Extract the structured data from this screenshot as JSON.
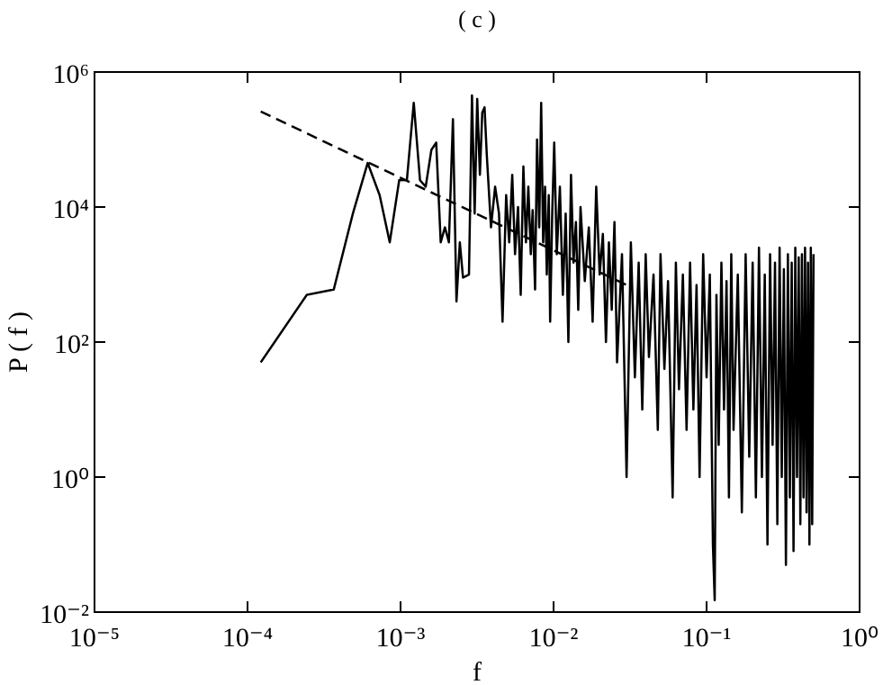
{
  "chart_data": {
    "type": "line",
    "title": "( c )",
    "x_label": "f",
    "y_label": "P ( f )",
    "log_x": true,
    "log_y": true,
    "xlim": [
      1e-05,
      1
    ],
    "ylim": [
      0.01,
      1000000
    ],
    "xticks": [
      {
        "value": 1e-05,
        "label": "10⁻⁵"
      },
      {
        "value": 0.0001,
        "label": "10⁻⁴"
      },
      {
        "value": 0.001,
        "label": "10⁻³"
      },
      {
        "value": 0.01,
        "label": "10⁻²"
      },
      {
        "value": 0.1,
        "label": "10⁻¹"
      },
      {
        "value": 1,
        "label": "10⁰"
      }
    ],
    "yticks": [
      {
        "value": 0.01,
        "label": "10⁻²"
      },
      {
        "value": 1,
        "label": "10⁰"
      },
      {
        "value": 100,
        "label": "10²"
      },
      {
        "value": 10000,
        "label": "10⁴"
      },
      {
        "value": 1000000,
        "label": "10⁶"
      }
    ],
    "series": [
      {
        "color": "#000000",
        "dashed": false,
        "x": [
          0.000122,
          0.000244,
          0.000366,
          0.000488,
          0.00061,
          0.00073,
          0.00085,
          0.00098,
          0.0011,
          0.00122,
          0.00134,
          0.00146,
          0.00159,
          0.00171,
          0.00183,
          0.00195,
          0.00207,
          0.0022,
          0.00232,
          0.00244,
          0.00256,
          0.0028,
          0.00293,
          0.00305,
          0.00317,
          0.0033,
          0.00342,
          0.00354,
          0.00366,
          0.0039,
          0.00415,
          0.0044,
          0.00464,
          0.0049,
          0.00513,
          0.00537,
          0.0056,
          0.00586,
          0.0061,
          0.00635,
          0.0066,
          0.00684,
          0.0071,
          0.0073,
          0.00757,
          0.0078,
          0.00806,
          0.0083,
          0.00855,
          0.0088,
          0.00903,
          0.0093,
          0.0095,
          0.0098,
          0.0101,
          0.0105,
          0.011,
          0.0115,
          0.012,
          0.0125,
          0.013,
          0.0135,
          0.014,
          0.0145,
          0.015,
          0.016,
          0.017,
          0.018,
          0.019,
          0.02,
          0.021,
          0.022,
          0.023,
          0.024,
          0.025,
          0.026,
          0.028,
          0.03,
          0.032,
          0.034,
          0.036,
          0.038,
          0.04,
          0.042,
          0.045,
          0.048,
          0.05,
          0.053,
          0.056,
          0.06,
          0.063,
          0.066,
          0.07,
          0.074,
          0.078,
          0.082,
          0.086,
          0.09,
          0.095,
          0.1,
          0.105,
          0.11,
          0.113,
          0.116,
          0.12,
          0.125,
          0.13,
          0.135,
          0.14,
          0.145,
          0.15,
          0.16,
          0.17,
          0.18,
          0.19,
          0.2,
          0.21,
          0.22,
          0.23,
          0.24,
          0.25,
          0.26,
          0.27,
          0.28,
          0.29,
          0.3,
          0.31,
          0.32,
          0.33,
          0.34,
          0.35,
          0.36,
          0.37,
          0.38,
          0.39,
          0.4,
          0.41,
          0.42,
          0.43,
          0.44,
          0.45,
          0.46,
          0.47,
          0.48,
          0.49,
          0.5
        ],
        "values": [
          50,
          500,
          600,
          8000,
          45000,
          15000,
          3000,
          25000,
          25000,
          350000,
          25000,
          20000,
          70000,
          90000,
          3000,
          5000,
          3000,
          200000,
          400,
          3000,
          900,
          1000,
          450000,
          8000,
          400000,
          30000,
          250000,
          300000,
          60000,
          5000,
          20000,
          8000,
          200,
          15000,
          3000,
          30000,
          2000,
          10000,
          500,
          40000,
          3000,
          20000,
          2000,
          9000,
          600,
          100000,
          5000,
          350000,
          3000,
          20000,
          1000,
          15000,
          200,
          8000,
          90000,
          2000,
          20000,
          500,
          8000,
          100,
          30000,
          1500,
          6000,
          300,
          10000,
          800,
          5000,
          200,
          20000,
          1000,
          4000,
          100,
          3000,
          300,
          6000,
          50,
          2000,
          1,
          3000,
          30,
          1500,
          10,
          2000,
          60,
          1000,
          5,
          2000,
          40,
          800,
          0.5,
          1500,
          20,
          1000,
          5,
          1500,
          10,
          700,
          1,
          2000,
          30,
          1000,
          0.1,
          0.015,
          500,
          3,
          1500,
          10,
          800,
          0.5,
          2000,
          5,
          1000,
          0.3,
          2000,
          2,
          1500,
          0.5,
          2500,
          1,
          1000,
          0.1,
          2000,
          3,
          1500,
          0.2,
          2500,
          1,
          1200,
          0.05,
          2000,
          0.5,
          1500,
          0.08,
          2500,
          1,
          1800,
          0.2,
          2000,
          0.5,
          2500,
          0.3,
          1500,
          0.1,
          2500,
          0.2,
          2000
        ]
      },
      {
        "color": "#000000",
        "dashed": true,
        "x": [
          0.000122,
          0.03
        ],
        "values": [
          260000,
          700
        ]
      }
    ]
  }
}
